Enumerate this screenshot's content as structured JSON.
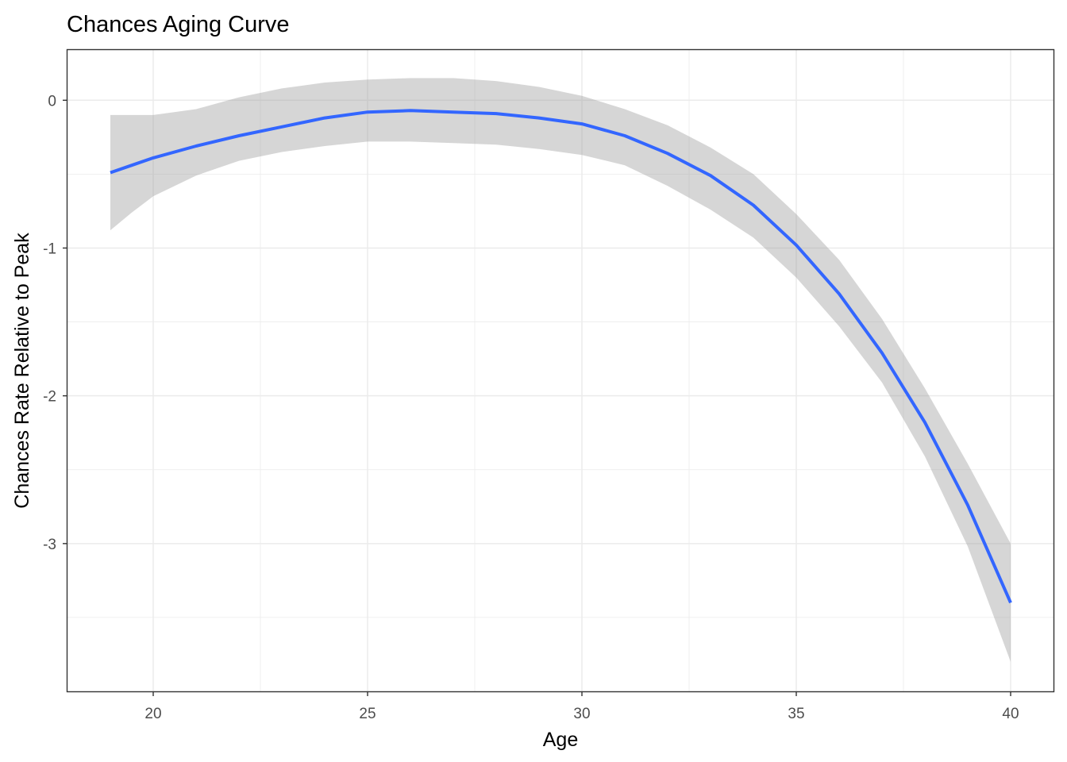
{
  "chart_data": {
    "type": "line",
    "title": "Chances Aging Curve",
    "xlabel": "Age",
    "ylabel": "Chances Rate Relative to Peak",
    "xlim": [
      18,
      41
    ],
    "ylim": [
      -4.0,
      0.34
    ],
    "x_ticks": [
      20,
      25,
      30,
      35,
      40
    ],
    "y_ticks": [
      0,
      -1,
      -2,
      -3
    ],
    "x_tick_labels": [
      "20",
      "25",
      "30",
      "35",
      "40"
    ],
    "y_tick_labels": [
      "0",
      "-1",
      "-2",
      "-3"
    ],
    "grid": true,
    "legend": "none",
    "colors": {
      "line": "#3366FF",
      "ribbon": "#999999",
      "grid": "#ebebeb",
      "panel_border": "#333333"
    },
    "series": [
      {
        "x": [
          19,
          19.5,
          20,
          21,
          22,
          23,
          24,
          25,
          26,
          27,
          28,
          29,
          30,
          31,
          32,
          33,
          34,
          35,
          36,
          37,
          38,
          39,
          40
        ],
        "y": [
          -0.49,
          -0.44,
          -0.39,
          -0.31,
          -0.24,
          -0.18,
          -0.12,
          -0.08,
          -0.07,
          -0.08,
          -0.09,
          -0.12,
          -0.16,
          -0.24,
          -0.36,
          -0.51,
          -0.71,
          -0.98,
          -1.31,
          -1.71,
          -2.18,
          -2.74,
          -3.4
        ],
        "lower": [
          -0.88,
          -0.76,
          -0.65,
          -0.51,
          -0.41,
          -0.35,
          -0.31,
          -0.28,
          -0.28,
          -0.29,
          -0.3,
          -0.33,
          -0.37,
          -0.44,
          -0.58,
          -0.74,
          -0.93,
          -1.2,
          -1.53,
          -1.91,
          -2.41,
          -3.02,
          -3.8
        ],
        "upper": [
          -0.1,
          -0.1,
          -0.1,
          -0.06,
          0.02,
          0.08,
          0.12,
          0.14,
          0.15,
          0.15,
          0.13,
          0.09,
          0.03,
          -0.06,
          -0.17,
          -0.32,
          -0.5,
          -0.77,
          -1.08,
          -1.48,
          -1.95,
          -2.46,
          -3.0
        ]
      }
    ]
  }
}
